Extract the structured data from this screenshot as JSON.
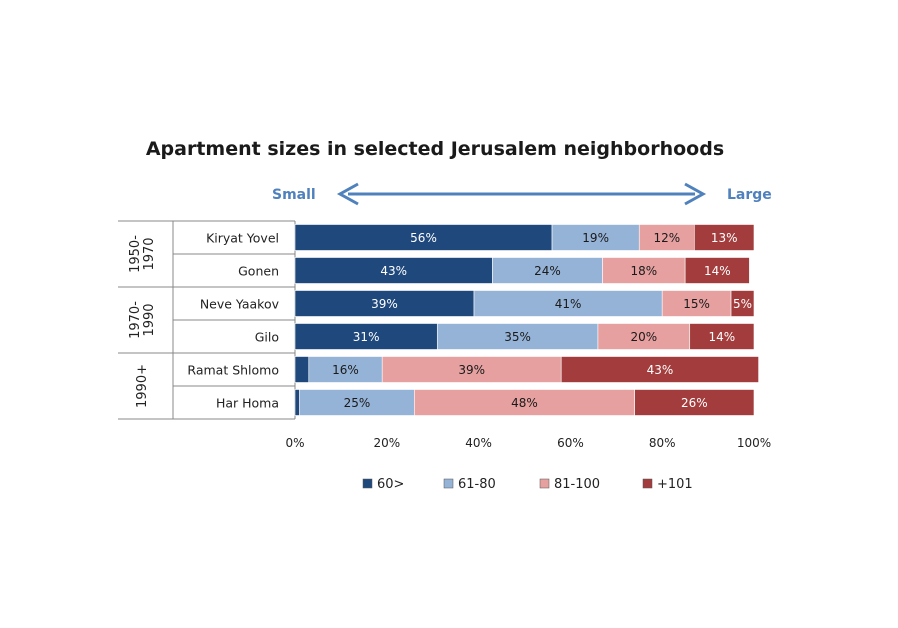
{
  "chart_data": {
    "type": "bar",
    "orientation": "horizontal",
    "stacked": true,
    "title": "Apartment sizes in selected Jerusalem neighborhoods",
    "annotations": {
      "left": "Small",
      "right": "Large"
    },
    "categories": [
      "Kiryat Yovel",
      "Gonen",
      "Neve Yaakov",
      "Gilo",
      "Ramat Shlomo",
      "Har Homa"
    ],
    "groups": [
      {
        "label_lines": [
          "1950-",
          "1970"
        ],
        "categories": [
          "Kiryat Yovel",
          "Gonen"
        ]
      },
      {
        "label_lines": [
          "1970-",
          "1990"
        ],
        "categories": [
          "Neve Yaakov",
          "Gilo"
        ]
      },
      {
        "label_lines": [
          "1990+"
        ],
        "categories": [
          "Ramat Shlomo",
          "Har Homa"
        ]
      }
    ],
    "series": [
      {
        "name": "60>",
        "color": "#1f497d",
        "label_color": "#ffffff",
        "values": [
          56,
          43,
          39,
          31,
          3,
          1
        ],
        "labels": [
          "56%",
          "43%",
          "39%",
          "31%",
          "",
          ""
        ]
      },
      {
        "name": "61-80",
        "color": "#95b3d7",
        "label_color": "#1a1a1a",
        "values": [
          19,
          24,
          41,
          35,
          16,
          25
        ],
        "labels": [
          "19%",
          "24%",
          "41%",
          "35%",
          "16%",
          "25%"
        ]
      },
      {
        "name": "81-100",
        "color": "#e6a0a0",
        "label_color": "#1a1a1a",
        "values": [
          12,
          18,
          15,
          20,
          39,
          48
        ],
        "labels": [
          "12%",
          "18%",
          "15%",
          "20%",
          "39%",
          "48%"
        ]
      },
      {
        "name": "+101",
        "color": "#a33d3d",
        "label_color": "#ffffff",
        "values": [
          13,
          14,
          5,
          14,
          43,
          26
        ],
        "labels": [
          "13%",
          "14%",
          "5%",
          "14%",
          "43%",
          "26%"
        ]
      }
    ],
    "xlim": [
      0,
      100
    ],
    "x_ticks": [
      "0%",
      "20%",
      "40%",
      "60%",
      "80%",
      "100%"
    ],
    "grid": false,
    "legend": {
      "position": "bottom"
    },
    "arrow_color": "#4f81bd"
  }
}
